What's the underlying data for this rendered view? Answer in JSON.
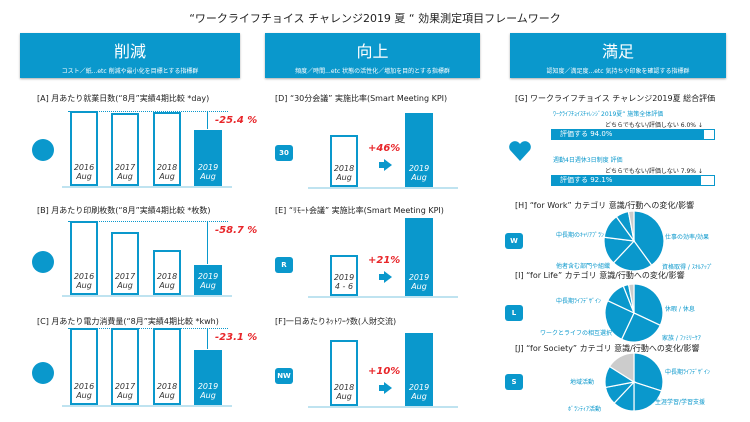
{
  "title": "“ワークライフチョイス チャレンジ2019 夏 “ 効果測定項目フレームワーク",
  "columns": [
    {
      "heading": "削減",
      "sub": "コスト／紙...etc 削減や最小化を目標とする指標群"
    },
    {
      "heading": "向上",
      "sub": "頻度／時間...etc 状態の活性化／増加を目的とする指標群"
    },
    {
      "heading": "満足",
      "sub": "認知度／満足度...etc 気持ちや印象を確認する指標群"
    }
  ],
  "panels": {
    "A": {
      "title": "[A] 月あたり就業日数(“8月”実績4期比較 *day)",
      "change": "-25.4 %",
      "icon": "clock-icon",
      "bars": [
        {
          "y": "2016",
          "m": "Aug"
        },
        {
          "y": "2017",
          "m": "Aug"
        },
        {
          "y": "2018",
          "m": "Aug"
        },
        {
          "y": "2019",
          "m": "Aug"
        }
      ]
    },
    "B": {
      "title": "[B] 月あたり印刷枚数(“8月”実績4期比較 *枚数)",
      "change": "-58.7 %",
      "icon": "documents-icon",
      "bars": [
        {
          "y": "2016",
          "m": "Aug"
        },
        {
          "y": "2017",
          "m": "Aug"
        },
        {
          "y": "2018",
          "m": "Aug"
        },
        {
          "y": "2019",
          "m": "Aug"
        }
      ]
    },
    "C": {
      "title": "[C] 月あたり電力消費量(“8月”実績4期比較 *kwh)",
      "change": "-23.1 %",
      "icon": "lightbulb-icon",
      "bars": [
        {
          "y": "2016",
          "m": "Aug"
        },
        {
          "y": "2017",
          "m": "Aug"
        },
        {
          "y": "2018",
          "m": "Aug"
        },
        {
          "y": "2019",
          "m": "Aug"
        }
      ]
    },
    "D": {
      "title": "[D] “30分会議” 実施比率(Smart Meeting KPI)",
      "badge": "30",
      "change": "+46%",
      "bars": [
        {
          "y": "2018",
          "m": "Aug"
        },
        {
          "y": "2019",
          "m": "Aug"
        }
      ]
    },
    "E": {
      "title": "[E] “ﾘﾓｰﾄ会議” 実施比率(Smart Meeting KPI)",
      "badge": "R",
      "change": "+21%",
      "bars": [
        {
          "y": "2019",
          "m": "4 - 6"
        },
        {
          "y": "2019",
          "m": "Aug"
        }
      ]
    },
    "F": {
      "title": "[F]一日あたりﾈｯﾄﾜｰｸ数(人財交流)",
      "badge": "NW",
      "change": "+10%",
      "bars": [
        {
          "y": "2018",
          "m": "Aug"
        },
        {
          "y": "2019",
          "m": "Aug"
        }
      ]
    },
    "G": {
      "title": "[G] ワークライフチョイス チャレンジ2019夏 総合評価",
      "icon": "heart-icon",
      "items": [
        {
          "label": "ﾜｰｸﾗｲﾌﾁｮｲｽﾁｬﾚﾝｼﾞ2019夏” 施策全体評価",
          "note": "どちらでもない/評価しない 6.0% ↓",
          "fill": "評価する 94.0%",
          "percent": 94.0
        },
        {
          "label": "週勤4日週休3日制度 評価",
          "note": "どちらでもない/評価しない 7.9% ↓",
          "fill": "評価する 92.1%",
          "percent": 92.1
        }
      ]
    },
    "H": {
      "title": "[H] “for Work” カテゴリ 意識/行動への変化/影響",
      "badge": "W",
      "labels": [
        "仕事の効率/効果",
        "資格取得 / ｽｷﾙｱｯﾌﾟ",
        "他者含む部門や組織",
        "中長期のｷｬﾘｱﾌﾟﾗﾝ"
      ],
      "slices": [
        40,
        22,
        15,
        13,
        7,
        3
      ]
    },
    "I": {
      "title": "[I] “for Life” カテゴリ 意識/行動への変化/影響",
      "badge": "L",
      "labels": [
        "休暇 / 休息",
        "家族 / ﾌｧﾐﾘｰｹｱ",
        "ワークとライフの相互選択",
        "中長期ﾗｲﾌﾃﾞｻﾞｲﾝ"
      ],
      "slices": [
        32,
        25,
        25,
        12,
        3,
        3
      ]
    },
    "J": {
      "title": "[J] “for Society” カテゴリ 意識/行動への変化/影響",
      "badge": "S",
      "labels": [
        "中長期ﾗｲﾌﾃﾞｻﾞｲﾝ",
        "生涯学習/学習支援",
        "ﾎﾞﾗﾝﾃｨｱ活動",
        "地域活動"
      ],
      "slices": [
        30,
        20,
        12,
        10,
        12,
        16
      ]
    }
  },
  "colors": {
    "accent": "#0a98cc",
    "negative": "#e8262a",
    "other": "#cccccc"
  }
}
